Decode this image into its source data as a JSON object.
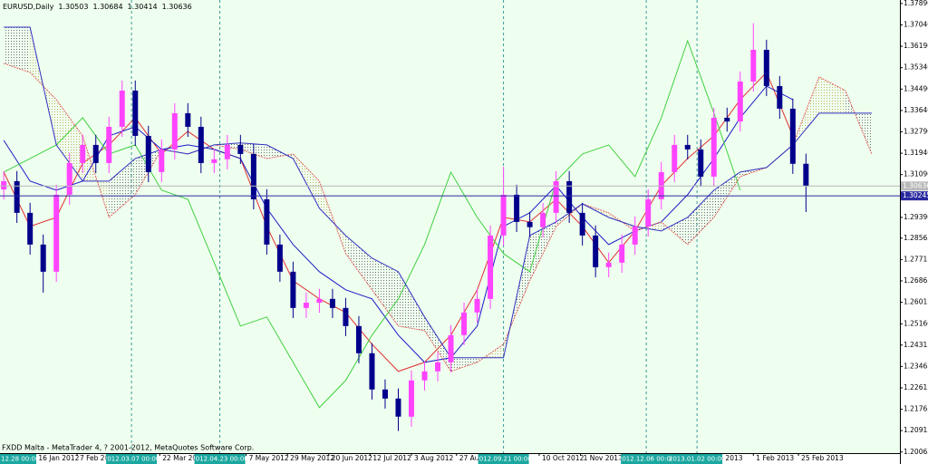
{
  "symbol_header": "EURUSD,Daily",
  "footer": "FXDD Malta - MetaTrader 4, ? 2001-2012, MetaQuotes Software Corp.",
  "chart_data": {
    "type": "candlestick",
    "ohlc_header": [
      1.30503,
      1.30684,
      1.30414,
      1.30636
    ],
    "x": [
      "2011-12-30",
      "2012-01-06",
      "2012-01-13",
      "2012-01-20",
      "2012-01-27",
      "2012-02-03",
      "2012-02-10",
      "2012-02-17",
      "2012-02-24",
      "2012-03-02",
      "2012-03-09",
      "2012-03-16",
      "2012-03-23",
      "2012-03-30",
      "2012-04-06",
      "2012-04-13",
      "2012-04-20",
      "2012-04-27",
      "2012-05-04",
      "2012-05-11",
      "2012-05-18",
      "2012-05-25",
      "2012-06-01",
      "2012-06-08",
      "2012-06-15",
      "2012-06-22",
      "2012-06-29",
      "2012-07-06",
      "2012-07-13",
      "2012-07-20",
      "2012-07-27",
      "2012-08-03",
      "2012-08-10",
      "2012-08-17",
      "2012-08-24",
      "2012-08-31",
      "2012-09-07",
      "2012-09-14",
      "2012-09-21",
      "2012-09-28",
      "2012-10-05",
      "2012-10-12",
      "2012-10-19",
      "2012-10-26",
      "2012-11-02",
      "2012-11-09",
      "2012-11-16",
      "2012-11-23",
      "2012-11-30",
      "2012-12-07",
      "2012-12-14",
      "2012-12-21",
      "2012-12-28",
      "2013-01-04",
      "2013-01-11",
      "2013-01-18",
      "2013-01-25",
      "2013-02-01",
      "2013-02-08",
      "2013-02-15",
      "2013-02-22",
      "2013-03-01"
    ],
    "open": [
      1.305,
      1.3083,
      1.2957,
      1.2831,
      1.2723,
      1.3029,
      1.3155,
      1.3227,
      1.3155,
      1.3299,
      1.3443,
      1.3263,
      1.3119,
      1.3209,
      1.3353,
      1.3299,
      1.3155,
      1.317,
      1.3227,
      1.3191,
      1.3011,
      1.2831,
      1.2723,
      1.2579,
      1.26,
      1.2615,
      1.2579,
      1.2507,
      1.2399,
      1.2255,
      1.2219,
      1.2147,
      1.2291,
      1.2327,
      1.2363,
      1.2471,
      1.2561,
      1.2615,
      1.2867,
      1.3029,
      1.2921,
      1.29,
      1.2957,
      1.3083,
      1.2957,
      1.2867,
      1.2741,
      1.2759,
      1.2831,
      1.2903,
      1.3011,
      1.3119,
      1.3227,
      1.3209,
      1.3101,
      1.3335,
      1.332,
      1.3479,
      1.3605,
      1.3461,
      1.3371,
      1.3152
    ],
    "high": [
      1.3123,
      1.3123,
      1.2997,
      1.2871,
      1.3069,
      1.3195,
      1.3267,
      1.3267,
      1.3339,
      1.3483,
      1.3483,
      1.3303,
      1.3249,
      1.3393,
      1.3393,
      1.3339,
      1.321,
      1.3267,
      1.3267,
      1.3231,
      1.3051,
      1.2871,
      1.2763,
      1.264,
      1.2655,
      1.2655,
      1.2619,
      1.2547,
      1.2439,
      1.2295,
      1.2259,
      1.2331,
      1.2367,
      1.2403,
      1.2511,
      1.2601,
      1.2655,
      1.2907,
      1.314,
      1.3069,
      1.2961,
      1.2997,
      1.3123,
      1.3123,
      1.2997,
      1.2907,
      1.2799,
      1.2871,
      1.2943,
      1.3051,
      1.3159,
      1.3267,
      1.3267,
      1.3249,
      1.3375,
      1.3375,
      1.3519,
      1.3711,
      1.3645,
      1.3501,
      1.3411,
      1.3192
    ],
    "low": [
      1.301,
      1.2917,
      1.2791,
      1.264,
      1.2683,
      1.2989,
      1.3115,
      1.3115,
      1.3115,
      1.3259,
      1.3223,
      1.3079,
      1.3079,
      1.3169,
      1.3259,
      1.3115,
      1.3115,
      1.313,
      1.3151,
      1.2971,
      1.2791,
      1.2683,
      1.2539,
      1.2539,
      1.256,
      1.2539,
      1.2467,
      1.2359,
      1.2215,
      1.2179,
      1.209,
      1.2107,
      1.2251,
      1.2287,
      1.2323,
      1.2431,
      1.2521,
      1.2575,
      1.2827,
      1.2881,
      1.286,
      1.286,
      1.2917,
      1.2917,
      1.2827,
      1.2701,
      1.2701,
      1.2719,
      1.2791,
      1.2863,
      1.2971,
      1.3079,
      1.3169,
      1.3061,
      1.3061,
      1.328,
      1.328,
      1.3439,
      1.3421,
      1.3331,
      1.3112,
      1.296
    ],
    "close": [
      1.3083,
      1.2957,
      1.2831,
      1.2723,
      1.3029,
      1.3155,
      1.3227,
      1.3155,
      1.3299,
      1.3443,
      1.3263,
      1.3119,
      1.3209,
      1.3353,
      1.3299,
      1.3155,
      1.317,
      1.3227,
      1.3191,
      1.3011,
      1.2831,
      1.2723,
      1.2579,
      1.26,
      1.2615,
      1.2579,
      1.2507,
      1.2399,
      1.2255,
      1.2219,
      1.2147,
      1.2291,
      1.2327,
      1.2363,
      1.2471,
      1.2561,
      1.2615,
      1.2867,
      1.3029,
      1.2921,
      1.29,
      1.2957,
      1.3083,
      1.2957,
      1.2867,
      1.2741,
      1.2759,
      1.2831,
      1.2903,
      1.3011,
      1.3119,
      1.3227,
      1.3209,
      1.3101,
      1.3335,
      1.332,
      1.3479,
      1.3605,
      1.3461,
      1.3371,
      1.3152,
      1.3064
    ],
    "up_color": "#ff44ff",
    "down_color": "#00008b",
    "ylim": [
      1.2002,
      1.3803
    ],
    "yticks": [
      {
        "value": 1.3789,
        "label": "1.37890"
      },
      {
        "value": 1.3704,
        "label": "1.37040"
      },
      {
        "value": 1.3619,
        "label": "1.36190"
      },
      {
        "value": 1.3534,
        "label": "1.35340"
      },
      {
        "value": 1.3449,
        "label": "1.34490"
      },
      {
        "value": 1.3364,
        "label": "1.33640"
      },
      {
        "value": 1.3279,
        "label": "1.32790"
      },
      {
        "value": 1.3194,
        "label": "1.31940"
      },
      {
        "value": 1.3109,
        "label": "1.31090"
      },
      {
        "value": 1.2939,
        "label": "1.29390"
      },
      1.28565,
      1.27715,
      1.26865,
      1.26015,
      {
        "value": 1.2516,
        "label": "1.25160"
      },
      1.24315,
      1.23465,
      1.22615,
      1.21765,
      1.20915,
      1.20065
    ],
    "xlim": [
      "2011-12-28",
      "2013-04-20"
    ],
    "xticks": [
      {
        "value": "2012-01-16",
        "label": "16 Jan 2012"
      },
      {
        "value": "2012-02-07",
        "label": "7 Feb 2012"
      },
      {
        "value": "2012-03-22",
        "label": "22 Mar 2012"
      },
      {
        "value": "2012-05-07",
        "label": "7 May 2012"
      },
      {
        "value": "2012-05-29",
        "label": "29 May 2012"
      },
      {
        "value": "2012-06-20",
        "label": "20 Jun 2012"
      },
      {
        "value": "2012-07-12",
        "label": "12 Jul 2012"
      },
      {
        "value": "2012-08-03",
        "label": "3 Aug 2012"
      },
      {
        "value": "2012-08-27",
        "label": "27 Aug 2012"
      },
      {
        "value": "2012-10-10",
        "label": "10 Oct 2012"
      },
      {
        "value": "2012-11-01",
        "label": "1 Nov 2012"
      },
      {
        "value": "2013-01-10",
        "label": "an 2013"
      },
      {
        "value": "2013-02-01",
        "label": "1 Feb 2013"
      },
      {
        "value": "2013-02-25",
        "label": "25 Feb 2013"
      }
    ],
    "vlines": [
      {
        "value": "2012-03-07",
        "label": "2012.03.07 00:00"
      },
      {
        "value": "2012-04-23",
        "label": "2012.04.23 00:00"
      },
      {
        "value": "2012-09-21",
        "label": "2012.09.21 00:00"
      },
      {
        "value": "2012-12-06",
        "label": "2012.12.06 00:00"
      },
      {
        "value": "2013-01-02",
        "label": "2013.01.02 00:00"
      }
    ],
    "vline_color": "#3a9a9a",
    "date_box": "12.28 00:00",
    "price_lines": [
      {
        "value": 1.30636,
        "color": "#b8b8b8"
      },
      {
        "value": 1.30245,
        "color": "#2a2aa0"
      }
    ],
    "cloud_colors": [
      "#c8b060",
      "#707070"
    ],
    "indicators": {
      "x": [
        "2011-12-30",
        "2012-01-13",
        "2012-01-27",
        "2012-02-10",
        "2012-02-24",
        "2012-03-09",
        "2012-03-23",
        "2012-04-06",
        "2012-04-20",
        "2012-05-04",
        "2012-05-18",
        "2012-06-01",
        "2012-06-15",
        "2012-06-29",
        "2012-07-13",
        "2012-07-27",
        "2012-08-10",
        "2012-08-24",
        "2012-09-07",
        "2012-09-21",
        "2012-10-05",
        "2012-10-19",
        "2012-11-02",
        "2012-11-16",
        "2012-11-30",
        "2012-12-14",
        "2012-12-28",
        "2013-01-11",
        "2013-01-25",
        "2013-02-08",
        "2013-02-22",
        "2013-03-08",
        "2013-03-22",
        "2013-04-05"
      ],
      "series": [
        {
          "color": "#e03030",
          "values": [
            1.3119,
            1.2903,
            1.2939,
            1.3155,
            1.3227,
            1.3335,
            1.3191,
            1.3281,
            1.3209,
            1.3173,
            1.2903,
            1.2687,
            1.2615,
            1.2561,
            1.2435,
            1.2327,
            1.2363,
            1.2471,
            1.2651,
            1.2939,
            1.2921,
            1.3011,
            1.2903,
            1.2759,
            1.2885,
            1.3065,
            1.3173,
            1.3263,
            1.3407,
            1.3515,
            1.3263,
            null,
            null,
            null
          ]
        },
        {
          "color": "#1a1ac8",
          "values": [
            1.3245,
            1.3083,
            1.3047,
            1.3083,
            1.3263,
            1.3299,
            1.3209,
            1.3227,
            1.3209,
            1.3173,
            1.2975,
            1.2831,
            1.2723,
            1.2651,
            1.2615,
            1.2471,
            1.2363,
            1.2381,
            1.2507,
            1.2903,
            1.2957,
            1.3065,
            1.2939,
            1.2831,
            1.2885,
            1.2921,
            1.3029,
            1.3173,
            1.3335,
            1.3461,
            1.3407,
            null,
            null,
            null
          ]
        },
        {
          "color": "#40d040",
          "values": [
            1.3119,
            1.3173,
            1.3227,
            1.3335,
            1.3191,
            1.3227,
            1.3047,
            1.3011,
            1.2759,
            1.2507,
            1.2543,
            1.2363,
            1.2183,
            1.2291,
            1.2471,
            1.2615,
            1.2831,
            1.3119,
            1.2939,
            1.2795,
            1.2723,
            1.3083,
            1.3191,
            1.3227,
            1.3101,
            1.3335,
            1.3641,
            1.3353,
            1.3047,
            null,
            null,
            null,
            null,
            null
          ]
        },
        {
          "color": "#e06060",
          "dashed": true,
          "values": [
            1.3551,
            1.3515,
            1.3407,
            1.3263,
            1.2939,
            1.3029,
            1.3209,
            1.3191,
            1.3227,
            1.3209,
            1.3173,
            1.3191,
            1.3083,
            1.2795,
            1.2651,
            1.2507,
            1.2489,
            1.2327,
            1.2363,
            1.2435,
            1.2687,
            1.2903,
            1.2993,
            1.2957,
            1.2885,
            1.2921,
            1.2831,
            1.2939,
            1.3101,
            1.3137,
            1.3227,
            1.3497,
            1.3443,
            1.3191
          ]
        },
        {
          "color": "#3030c0",
          "values": [
            1.3695,
            1.3695,
            1.3227,
            1.3083,
            1.3083,
            1.3173,
            1.3209,
            1.3191,
            1.3227,
            1.3235,
            1.3227,
            1.3173,
            1.2975,
            1.2867,
            1.2777,
            1.2723,
            1.2543,
            1.2381,
            1.2381,
            1.2381,
            1.2867,
            1.2921,
            1.2993,
            1.2939,
            1.2903,
            1.2885,
            1.2939,
            1.3047,
            1.3119,
            1.3137,
            1.3227,
            1.3353,
            1.3353,
            1.3353
          ]
        }
      ]
    }
  }
}
